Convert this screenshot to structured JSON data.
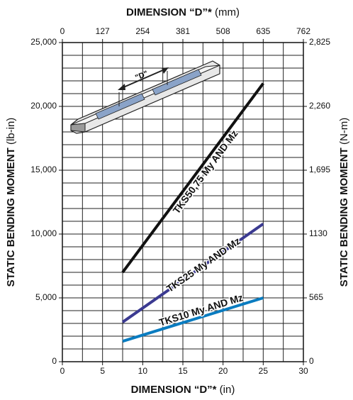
{
  "chart_data": {
    "type": "line",
    "x_label": "DIMENSION “D”*",
    "x_unit": "(in)",
    "x2_label": "DIMENSION “D”*",
    "x2_unit": "(mm)",
    "y_label": "STATIC BENDING MOMENT",
    "y_unit": "(lb-in)",
    "y2_label": "STATIC BENDING MOMENT",
    "y2_unit": "(N-m)",
    "image_label": "\"D\"",
    "xlim": [
      0,
      30
    ],
    "xticks": [
      0,
      5,
      10,
      15,
      20,
      25,
      30
    ],
    "x2lim": [
      0,
      762
    ],
    "x2ticks": [
      0,
      127,
      254,
      381,
      508,
      635,
      762
    ],
    "ylim": [
      0,
      25000
    ],
    "yticks": [
      0,
      {
        "value": 5000,
        "label": "5,000"
      },
      {
        "value": 10000,
        "label": "10,000"
      },
      {
        "value": 15000,
        "label": "15,000"
      },
      {
        "value": 20000,
        "label": "20,000"
      },
      {
        "value": 25000,
        "label": "25,000"
      }
    ],
    "y2lim": [
      0,
      2825
    ],
    "y2ticks": [
      0,
      565,
      1130,
      {
        "value": 1695,
        "label": "1,695"
      },
      {
        "value": 2260,
        "label": "2,260"
      },
      {
        "value": 2825,
        "label": "2,825"
      }
    ],
    "grid": {
      "x_step": 2.5,
      "y_step": 1000
    },
    "x": [
      7.5,
      25
    ],
    "series": [
      {
        "name": "TKS50,75 My AND Mz",
        "color": "#111111",
        "values": [
          7000,
          21800
        ]
      },
      {
        "name": "TKS25 My AND Mz",
        "color": "#3b3a91",
        "values": [
          3100,
          10800
        ]
      },
      {
        "name": "TKS10 My AND Mz",
        "color": "#0a7cc0",
        "values": [
          1600,
          5000
        ]
      }
    ]
  }
}
